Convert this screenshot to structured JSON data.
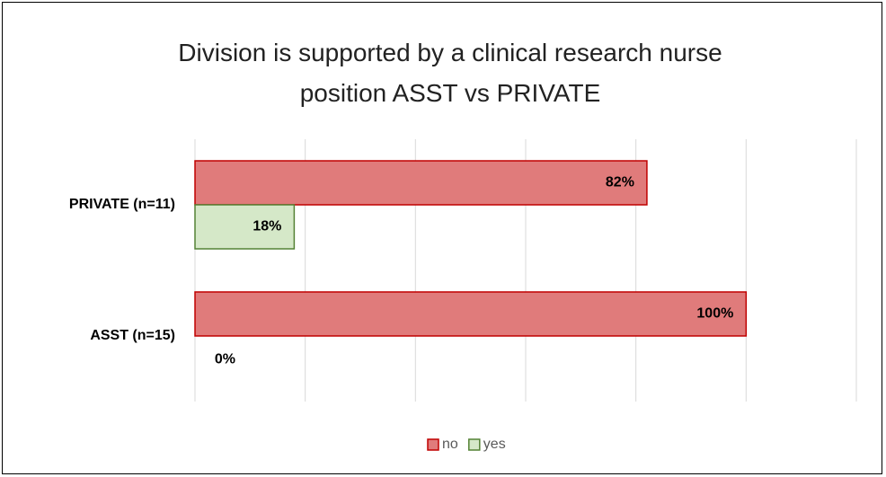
{
  "chart_data": {
    "type": "hbar",
    "title": "Division is supported by a clinical research nurse position ASST vs PRIVATE",
    "categories": [
      "PRIVATE (n=11)",
      "ASST (n=15)"
    ],
    "series": [
      {
        "name": "no",
        "color": "#e07b7b",
        "edge": "#c00000",
        "values": [
          82,
          100
        ],
        "value_labels": [
          "82%",
          "100%"
        ]
      },
      {
        "name": "yes",
        "color": "#d5e8c8",
        "edge": "#548235",
        "values": [
          18,
          0
        ],
        "value_labels": [
          "18%",
          "0%"
        ]
      }
    ],
    "xlim": [
      0,
      120
    ],
    "xticks": [
      0,
      20,
      40,
      60,
      80,
      100,
      120
    ],
    "grid": true,
    "legend": "bottom"
  }
}
